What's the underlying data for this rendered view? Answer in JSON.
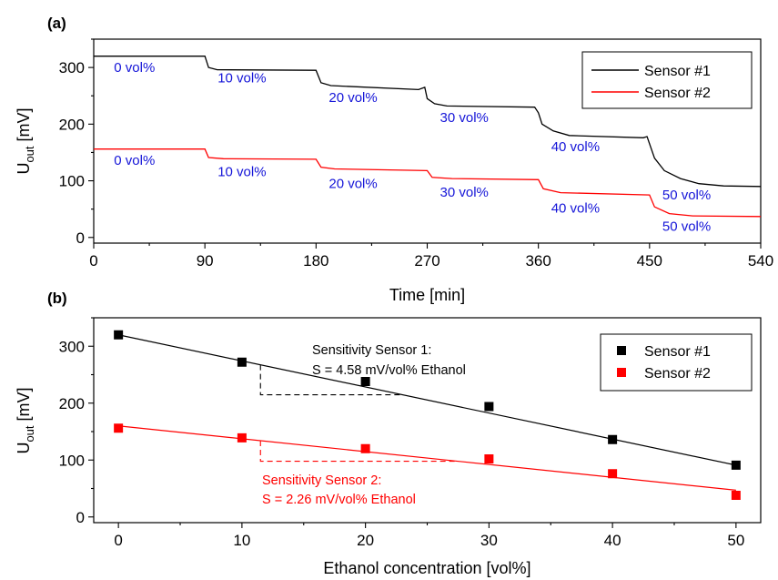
{
  "colors": {
    "sensor1": "#000000",
    "sensor2": "#ff0000",
    "annotation": "#1515d8"
  },
  "chart_data": [
    {
      "panel_label": "(a)",
      "type": "line",
      "xlabel": "Time [min]",
      "ylabel_main": "U",
      "ylabel_sub": "out",
      "ylabel_unit": " [mV]",
      "xlim": [
        0,
        540
      ],
      "ylim": [
        -10,
        350
      ],
      "xticks": [
        0,
        90,
        180,
        270,
        360,
        450,
        540
      ],
      "yticks": [
        0,
        100,
        200,
        300
      ],
      "legend_position": "top-right",
      "series": [
        {
          "name": "Sensor #1",
          "color": "#000000",
          "x": [
            0,
            90,
            93,
            100,
            180,
            184,
            192,
            263,
            268,
            270,
            276,
            286,
            357,
            360,
            363,
            372,
            385,
            445,
            448,
            454,
            462,
            475,
            490,
            510,
            540
          ],
          "values": [
            320,
            320,
            300,
            296,
            295,
            273,
            268,
            261,
            265,
            245,
            236,
            232,
            230,
            220,
            200,
            188,
            180,
            176,
            178,
            140,
            118,
            104,
            95,
            91,
            90
          ]
        },
        {
          "name": "Sensor #2",
          "color": "#ff0000",
          "x": [
            0,
            90,
            93,
            105,
            180,
            184,
            195,
            270,
            274,
            290,
            360,
            364,
            378,
            450,
            454,
            466,
            485,
            540
          ],
          "values": [
            156,
            156,
            141,
            139,
            138,
            124,
            121,
            118,
            106,
            104,
            102,
            86,
            79,
            75,
            54,
            42,
            38,
            37
          ]
        }
      ],
      "annotations": [
        {
          "text": "0 vol%",
          "x": 33,
          "y": 300
        },
        {
          "text": "10 vol%",
          "x": 120,
          "y": 282
        },
        {
          "text": "20 vol%",
          "x": 210,
          "y": 247
        },
        {
          "text": "30 vol%",
          "x": 300,
          "y": 212
        },
        {
          "text": "40 vol%",
          "x": 390,
          "y": 160
        },
        {
          "text": "50 vol%",
          "x": 480,
          "y": 75
        },
        {
          "text": "0 vol%",
          "x": 33,
          "y": 136
        },
        {
          "text": "10 vol%",
          "x": 120,
          "y": 116
        },
        {
          "text": "20 vol%",
          "x": 210,
          "y": 95
        },
        {
          "text": "30 vol%",
          "x": 300,
          "y": 80
        },
        {
          "text": "40 vol%",
          "x": 390,
          "y": 52
        },
        {
          "text": "50 vol%",
          "x": 480,
          "y": 20
        }
      ]
    },
    {
      "panel_label": "(b)",
      "type": "scatter",
      "xlabel": "Ethanol concentration [vol%]",
      "ylabel_main": "U",
      "ylabel_sub": "out",
      "ylabel_unit": " [mV]",
      "xlim": [
        -2,
        52
      ],
      "ylim": [
        -10,
        350
      ],
      "xticks": [
        0,
        10,
        20,
        30,
        40,
        50
      ],
      "yticks": [
        0,
        100,
        200,
        300
      ],
      "legend_position": "top-right",
      "series": [
        {
          "name": "Sensor #1",
          "color": "#000000",
          "x": [
            0,
            10,
            20,
            30,
            40,
            50
          ],
          "values": [
            320,
            272,
            238,
            194,
            136,
            91
          ],
          "fit": {
            "intercept": 320,
            "slope": -4.58
          }
        },
        {
          "name": "Sensor #2",
          "color": "#ff0000",
          "x": [
            0,
            10,
            20,
            30,
            40,
            50
          ],
          "values": [
            156,
            139,
            120,
            102,
            76,
            38
          ],
          "fit": {
            "intercept": 160,
            "slope": -2.26
          }
        }
      ],
      "sensitivity_notes": [
        {
          "line1": "Sensitivity Sensor 1:",
          "line2": "S = 4.58 mV/vol% Ethanol",
          "color": "#000000"
        },
        {
          "line1": "Sensitivity Sensor 2:",
          "line2": "S = 2.26 mV/vol% Ethanol",
          "color": "#ff0000"
        }
      ]
    }
  ]
}
